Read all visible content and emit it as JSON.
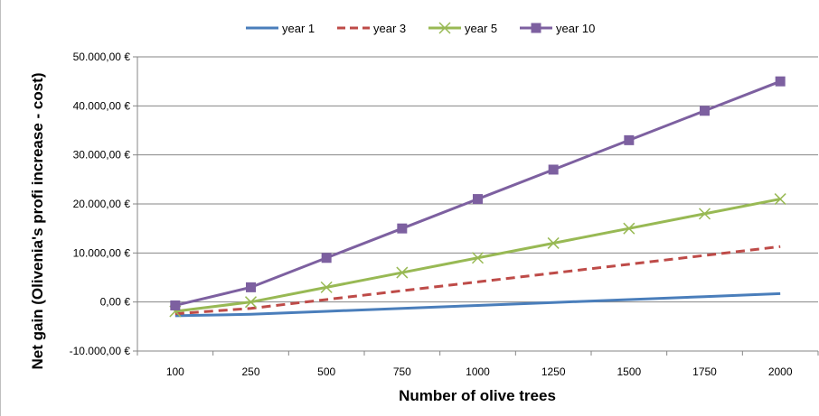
{
  "chart_data": {
    "type": "line",
    "xlabel": "Number of olive trees",
    "ylabel": "Net gain (Olivenia's profi increase - cost)",
    "categories": [
      "100",
      "250",
      "500",
      "750",
      "1000",
      "1250",
      "1500",
      "1750",
      "2000"
    ],
    "ylim": [
      -10000,
      50000
    ],
    "ytick_values": [
      -10000,
      0,
      10000,
      20000,
      30000,
      40000,
      50000
    ],
    "ytick_labels": [
      "-10.000,00 €",
      "0,00 €",
      "10.000,00 €",
      "20.000,00 €",
      "30.000,00 €",
      "40.000,00 €",
      "50.000,00 €"
    ],
    "grid": true,
    "legend_position": "top",
    "series": [
      {
        "name": "year 1",
        "color": "#4a7ebb",
        "style": "solid",
        "marker": "none",
        "values": [
          -2800,
          -2500,
          -1900,
          -1300,
          -700,
          -100,
          500,
          1100,
          1700
        ]
      },
      {
        "name": "year 3",
        "color": "#be4b48",
        "style": "dashed",
        "marker": "none",
        "values": [
          -2400,
          -1300,
          500,
          2300,
          4100,
          5900,
          7700,
          9500,
          11300
        ]
      },
      {
        "name": "year 5",
        "color": "#98b954",
        "style": "solid",
        "marker": "x",
        "values": [
          -1900,
          0,
          3000,
          6000,
          9000,
          12000,
          15000,
          18000,
          21000
        ]
      },
      {
        "name": "year 10",
        "color": "#7d60a0",
        "style": "solid",
        "marker": "square",
        "values": [
          -700,
          3000,
          9000,
          15000,
          21000,
          27000,
          33000,
          39000,
          45000
        ]
      }
    ]
  }
}
